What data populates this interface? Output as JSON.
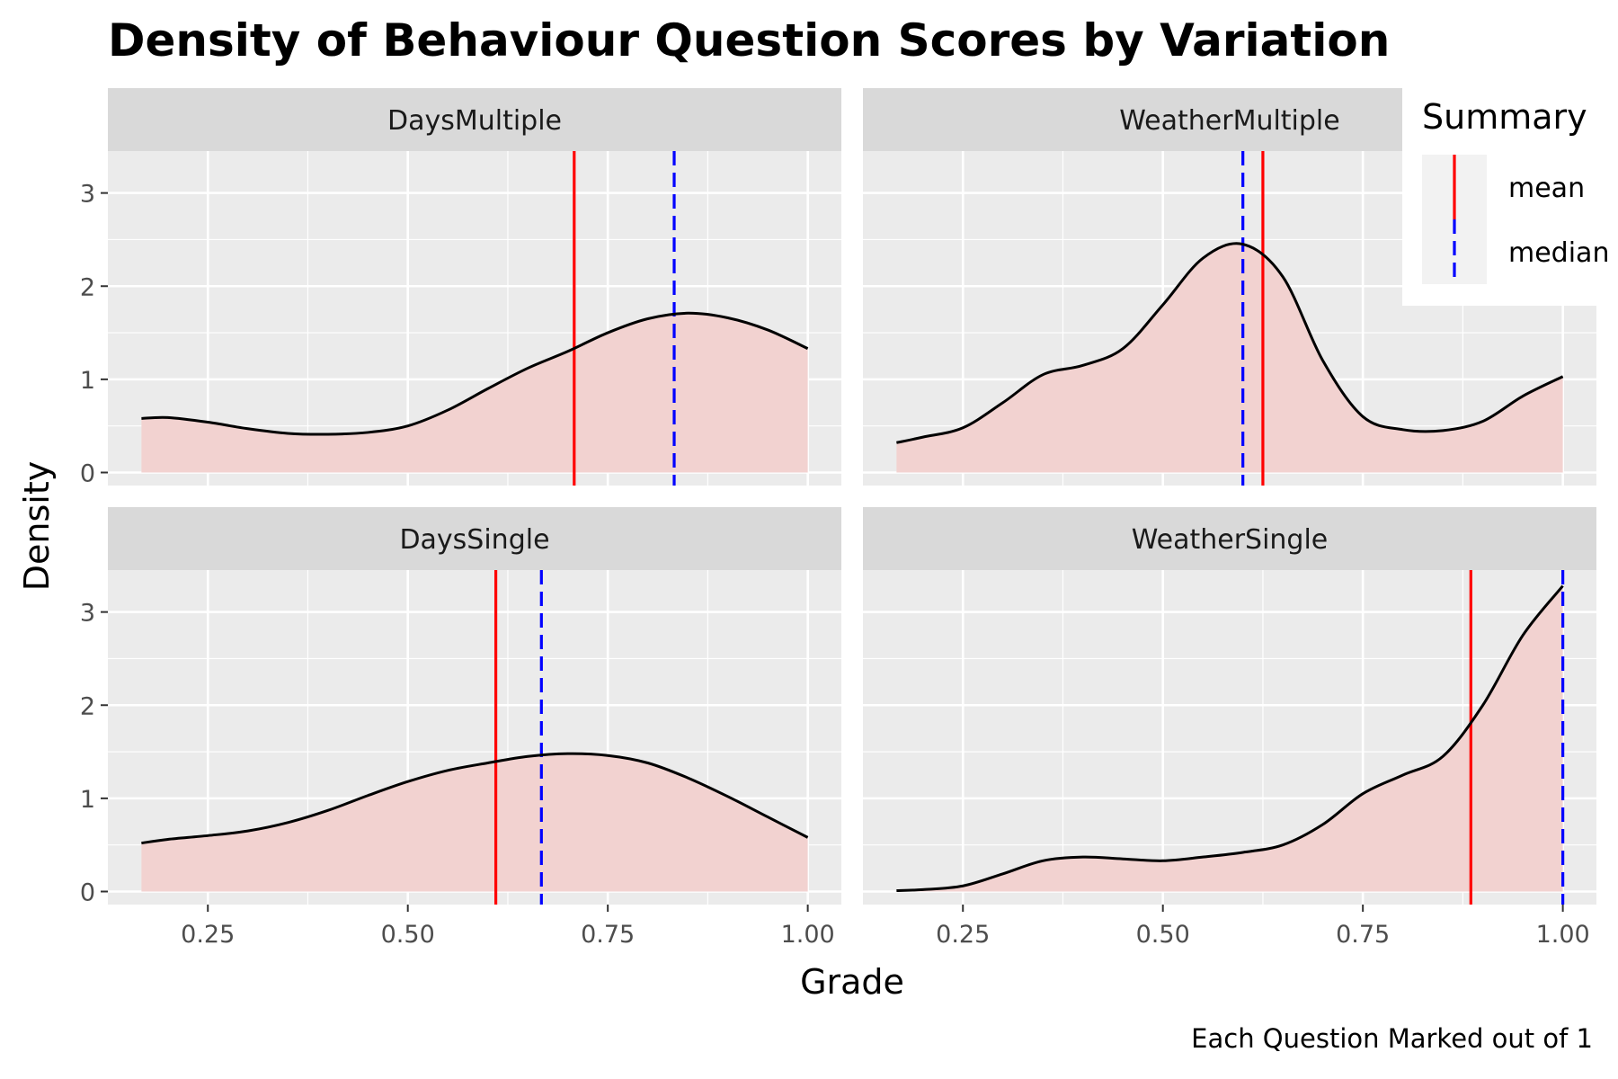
{
  "chart_data": {
    "type": "area",
    "title": "Density of Behaviour Question Scores by Variation",
    "xlabel": "Grade",
    "ylabel": "Density",
    "caption": "Each Question Marked out of 1",
    "xlim": [
      0.125,
      1.042
    ],
    "ylim": [
      -0.14,
      3.45
    ],
    "x_ticks": [
      "0.25",
      "0.50",
      "0.75",
      "1.00"
    ],
    "x_tick_values": [
      0.25,
      0.5,
      0.75,
      1.0
    ],
    "y_ticks": [
      "0",
      "1",
      "2",
      "3"
    ],
    "y_tick_values": [
      0,
      1,
      2,
      3
    ],
    "grid": true,
    "fill_color": "#f2d2d0",
    "line_color": "#000000",
    "legend": {
      "title": "Summary",
      "position": "top-right",
      "items": [
        {
          "label": "mean",
          "color": "#ff0000",
          "style": "solid"
        },
        {
          "label": "median",
          "color": "#0000ff",
          "style": "dashed"
        }
      ]
    },
    "panels": [
      {
        "name": "DaysMultiple",
        "mean": 0.708,
        "median": 0.833,
        "x": [
          0.167,
          0.2,
          0.25,
          0.3,
          0.35,
          0.4,
          0.45,
          0.5,
          0.55,
          0.6,
          0.65,
          0.7,
          0.75,
          0.8,
          0.85,
          0.9,
          0.95,
          1.0
        ],
        "y": [
          0.58,
          0.59,
          0.54,
          0.47,
          0.42,
          0.41,
          0.43,
          0.5,
          0.67,
          0.9,
          1.12,
          1.3,
          1.5,
          1.65,
          1.71,
          1.66,
          1.53,
          1.33
        ]
      },
      {
        "name": "WeatherMultiple",
        "mean": 0.625,
        "median": 0.6,
        "x": [
          0.167,
          0.2,
          0.25,
          0.3,
          0.35,
          0.4,
          0.45,
          0.5,
          0.55,
          0.6,
          0.65,
          0.7,
          0.75,
          0.8,
          0.85,
          0.9,
          0.95,
          1.0
        ],
        "y": [
          0.32,
          0.38,
          0.48,
          0.75,
          1.05,
          1.15,
          1.33,
          1.8,
          2.3,
          2.45,
          2.1,
          1.2,
          0.6,
          0.46,
          0.45,
          0.55,
          0.82,
          1.03
        ]
      },
      {
        "name": "DaysSingle",
        "mean": 0.61,
        "median": 0.667,
        "x": [
          0.167,
          0.2,
          0.25,
          0.3,
          0.35,
          0.4,
          0.45,
          0.5,
          0.55,
          0.6,
          0.65,
          0.7,
          0.75,
          0.8,
          0.85,
          0.9,
          0.95,
          1.0
        ],
        "y": [
          0.52,
          0.56,
          0.6,
          0.65,
          0.74,
          0.87,
          1.03,
          1.18,
          1.3,
          1.38,
          1.45,
          1.48,
          1.46,
          1.38,
          1.22,
          1.02,
          0.8,
          0.58
        ]
      },
      {
        "name": "WeatherSingle",
        "mean": 0.885,
        "median": 1.0,
        "x": [
          0.167,
          0.2,
          0.25,
          0.3,
          0.35,
          0.4,
          0.45,
          0.5,
          0.55,
          0.6,
          0.65,
          0.7,
          0.75,
          0.8,
          0.85,
          0.9,
          0.95,
          1.0
        ],
        "y": [
          0.01,
          0.02,
          0.06,
          0.19,
          0.33,
          0.37,
          0.35,
          0.33,
          0.37,
          0.42,
          0.5,
          0.72,
          1.05,
          1.25,
          1.45,
          2.0,
          2.75,
          3.28
        ]
      }
    ]
  }
}
